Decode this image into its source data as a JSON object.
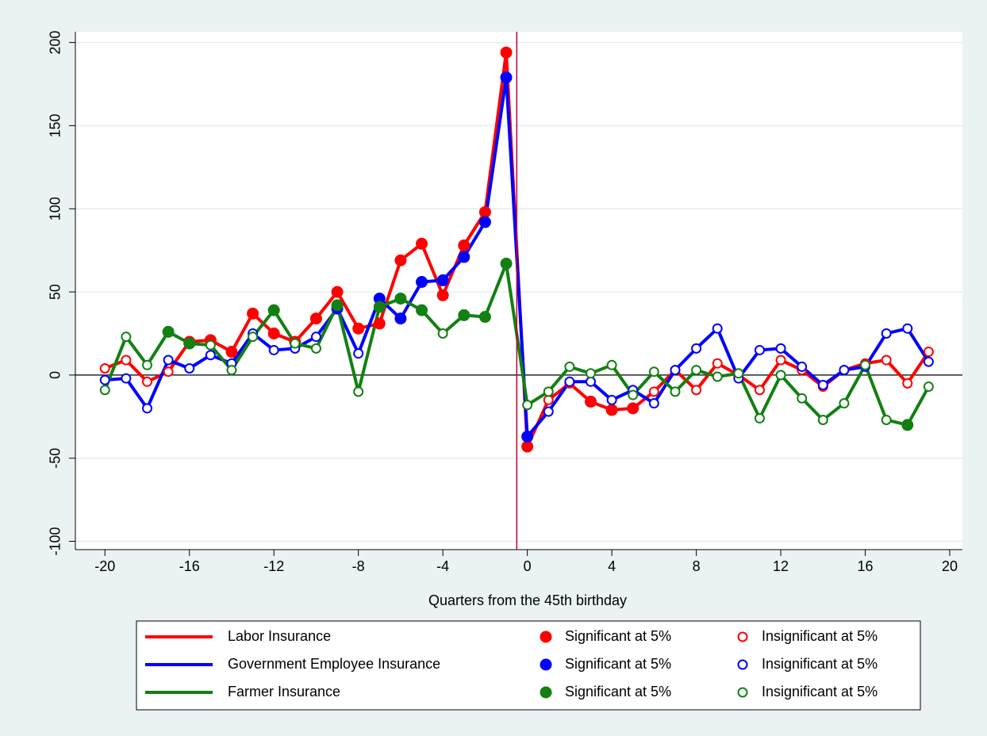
{
  "chart_data": {
    "type": "line",
    "x_label": "Quarters from the 45th birthday",
    "x": [
      -20,
      -19,
      -18,
      -17,
      -16,
      -15,
      -14,
      -13,
      -12,
      -11,
      -10,
      -9,
      -8,
      -7,
      -6,
      -5,
      -4,
      -3,
      -2,
      -1,
      0,
      1,
      2,
      3,
      4,
      5,
      6,
      7,
      8,
      9,
      10,
      11,
      12,
      13,
      14,
      15,
      16,
      17,
      18,
      19
    ],
    "xlim": [
      -21.4,
      20.6
    ],
    "xticks": [
      -20,
      -16,
      -12,
      -8,
      -4,
      0,
      4,
      8,
      12,
      16,
      20
    ],
    "ylim": [
      -105,
      206.5
    ],
    "yticks": [
      -100,
      -50,
      0,
      50,
      100,
      150,
      200
    ],
    "grid": true,
    "vline": -0.5,
    "vline_color": "#c00030",
    "hline": 0,
    "series": [
      {
        "name": "Labor Insurance",
        "color": "#ff0000",
        "significant_label": "Significant at 5%",
        "insignificant_label": "Insignificant at 5%",
        "values": [
          4,
          9,
          -4,
          2,
          20,
          21,
          14,
          37,
          25,
          20,
          34,
          50,
          28,
          31,
          69,
          79,
          48,
          78,
          98,
          194,
          -43,
          -15,
          -5,
          -16,
          -21,
          -20,
          -10,
          3,
          -9,
          7,
          0,
          -9,
          9,
          3,
          -7,
          3,
          7,
          9,
          -5,
          14
        ],
        "significant": [
          false,
          false,
          false,
          false,
          true,
          true,
          true,
          true,
          true,
          true,
          true,
          true,
          true,
          true,
          true,
          true,
          true,
          true,
          true,
          true,
          true,
          false,
          false,
          true,
          true,
          true,
          false,
          false,
          false,
          false,
          false,
          false,
          false,
          false,
          false,
          false,
          false,
          false,
          false,
          false
        ]
      },
      {
        "name": "Government Employee Insurance",
        "color": "#0000ff",
        "significant_label": "Significant at 5%",
        "insignificant_label": "Insignificant at 5%",
        "values": [
          -3,
          -2,
          -20,
          9,
          4,
          12,
          7,
          25,
          15,
          16,
          23,
          40,
          13,
          46,
          34,
          56,
          57,
          71,
          92,
          179,
          -37,
          -22,
          -4,
          -4,
          -15,
          -9,
          -17,
          3,
          16,
          28,
          -2,
          15,
          16,
          5,
          -6,
          3,
          5,
          25,
          28,
          8
        ],
        "significant": [
          false,
          false,
          false,
          false,
          false,
          false,
          false,
          false,
          false,
          false,
          false,
          true,
          false,
          true,
          true,
          true,
          true,
          true,
          true,
          true,
          true,
          false,
          false,
          false,
          false,
          false,
          false,
          false,
          false,
          false,
          false,
          false,
          false,
          false,
          false,
          false,
          false,
          false,
          false,
          false
        ]
      },
      {
        "name": "Farmer Insurance",
        "color": "#128012",
        "significant_label": "Significant at 5%",
        "insignificant_label": "Insignificant at 5%",
        "values": [
          -9,
          23,
          6,
          26,
          19,
          18,
          3,
          23,
          39,
          19,
          16,
          42,
          -10,
          41,
          46,
          39,
          25,
          36,
          35,
          67,
          -18,
          -10,
          5,
          1,
          6,
          -12,
          2,
          -10,
          3,
          -1,
          1,
          -26,
          0,
          -14,
          -27,
          -17,
          6,
          -27,
          -30,
          -7
        ],
        "significant": [
          false,
          false,
          false,
          true,
          true,
          false,
          false,
          false,
          true,
          false,
          false,
          true,
          false,
          true,
          true,
          true,
          false,
          true,
          true,
          true,
          false,
          false,
          false,
          false,
          false,
          false,
          false,
          false,
          false,
          false,
          false,
          false,
          false,
          false,
          false,
          false,
          false,
          false,
          true,
          false
        ]
      }
    ]
  }
}
